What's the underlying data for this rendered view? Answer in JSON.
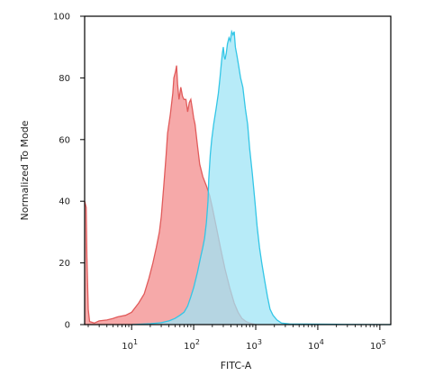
{
  "chart_data": {
    "type": "area",
    "title": "",
    "xlabel": "FITC-A",
    "ylabel": "Normalized To Mode",
    "x_scale": "log",
    "xlim": [
      1.75,
      150000
    ],
    "ylim": [
      0,
      100
    ],
    "x_ticks": [
      {
        "base": "10",
        "exp": "1",
        "value": 10
      },
      {
        "base": "10",
        "exp": "2",
        "value": 100
      },
      {
        "base": "10",
        "exp": "3",
        "value": 1000
      },
      {
        "base": "10",
        "exp": "4",
        "value": 10000
      },
      {
        "base": "10",
        "exp": "5",
        "value": 100000
      }
    ],
    "y_ticks": [
      "0",
      "20",
      "40",
      "60",
      "80",
      "100"
    ],
    "grid": false,
    "legend": "none",
    "series": [
      {
        "color": "#e15b5b",
        "fill": "#f59a9a",
        "points": [
          [
            1.75,
            40
          ],
          [
            1.85,
            38
          ],
          [
            1.9,
            22
          ],
          [
            2.0,
            5
          ],
          [
            2.1,
            1
          ],
          [
            2.5,
            0.5
          ],
          [
            3,
            1.2
          ],
          [
            4,
            1.5
          ],
          [
            5,
            2
          ],
          [
            6,
            2.5
          ],
          [
            8,
            3
          ],
          [
            10,
            4
          ],
          [
            13,
            7
          ],
          [
            16,
            10
          ],
          [
            19,
            15
          ],
          [
            22,
            20
          ],
          [
            25,
            25
          ],
          [
            28,
            30
          ],
          [
            30,
            35
          ],
          [
            33,
            45
          ],
          [
            36,
            55
          ],
          [
            38,
            62
          ],
          [
            42,
            68
          ],
          [
            46,
            75
          ],
          [
            48,
            80
          ],
          [
            51,
            82
          ],
          [
            53,
            84
          ],
          [
            55,
            78
          ],
          [
            58,
            73
          ],
          [
            62,
            77
          ],
          [
            66,
            74
          ],
          [
            70,
            73
          ],
          [
            75,
            73
          ],
          [
            80,
            69
          ],
          [
            85,
            72
          ],
          [
            90,
            73
          ],
          [
            95,
            70
          ],
          [
            100,
            67
          ],
          [
            105,
            65
          ],
          [
            115,
            58
          ],
          [
            125,
            52
          ],
          [
            140,
            48
          ],
          [
            160,
            45
          ],
          [
            180,
            42
          ],
          [
            200,
            38
          ],
          [
            230,
            32
          ],
          [
            270,
            25
          ],
          [
            320,
            18
          ],
          [
            380,
            12
          ],
          [
            450,
            7
          ],
          [
            520,
            4
          ],
          [
            600,
            2
          ],
          [
            700,
            1
          ],
          [
            800,
            0.5
          ],
          [
            1000,
            0
          ]
        ]
      },
      {
        "color": "#33c6e6",
        "fill": "#9fe4f6",
        "points": [
          [
            10,
            0
          ],
          [
            20,
            0.3
          ],
          [
            30,
            0.6
          ],
          [
            40,
            1.2
          ],
          [
            50,
            2
          ],
          [
            60,
            3
          ],
          [
            70,
            4
          ],
          [
            80,
            6
          ],
          [
            90,
            9
          ],
          [
            100,
            12
          ],
          [
            115,
            17
          ],
          [
            130,
            22
          ],
          [
            140,
            25
          ],
          [
            150,
            28
          ],
          [
            160,
            33
          ],
          [
            170,
            40
          ],
          [
            175,
            47
          ],
          [
            185,
            55
          ],
          [
            195,
            60
          ],
          [
            210,
            65
          ],
          [
            230,
            70
          ],
          [
            250,
            75
          ],
          [
            265,
            80
          ],
          [
            280,
            85
          ],
          [
            290,
            88
          ],
          [
            300,
            90
          ],
          [
            310,
            87
          ],
          [
            320,
            86
          ],
          [
            335,
            88
          ],
          [
            350,
            91
          ],
          [
            370,
            93
          ],
          [
            390,
            92
          ],
          [
            410,
            95
          ],
          [
            430,
            94
          ],
          [
            450,
            95
          ],
          [
            470,
            90
          ],
          [
            500,
            87
          ],
          [
            530,
            84
          ],
          [
            570,
            80
          ],
          [
            620,
            77
          ],
          [
            680,
            70
          ],
          [
            740,
            65
          ],
          [
            800,
            57
          ],
          [
            880,
            49
          ],
          [
            970,
            40
          ],
          [
            1050,
            32
          ],
          [
            1150,
            25
          ],
          [
            1250,
            20
          ],
          [
            1400,
            14
          ],
          [
            1550,
            9
          ],
          [
            1700,
            5
          ],
          [
            1900,
            3
          ],
          [
            2200,
            1.5
          ],
          [
            2600,
            0.5
          ],
          [
            3500,
            0.2
          ],
          [
            20000,
            0.1
          ],
          [
            150000,
            0
          ]
        ]
      }
    ]
  }
}
